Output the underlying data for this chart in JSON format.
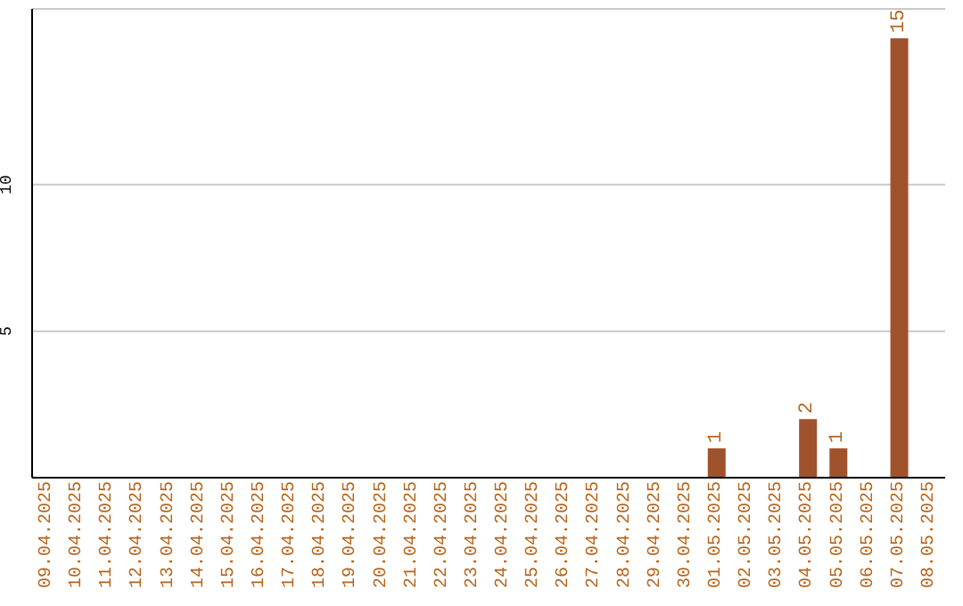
{
  "chart_data": {
    "type": "bar",
    "categories": [
      "09.04.2025",
      "10.04.2025",
      "11.04.2025",
      "12.04.2025",
      "13.04.2025",
      "14.04.2025",
      "15.04.2025",
      "16.04.2025",
      "17.04.2025",
      "18.04.2025",
      "19.04.2025",
      "20.04.2025",
      "21.04.2025",
      "22.04.2025",
      "23.04.2025",
      "24.04.2025",
      "25.04.2025",
      "26.04.2025",
      "27.04.2025",
      "28.04.2025",
      "29.04.2025",
      "30.04.2025",
      "01.05.2025",
      "02.05.2025",
      "03.05.2025",
      "04.05.2025",
      "05.05.2025",
      "06.05.2025",
      "07.05.2025",
      "08.05.2025"
    ],
    "values": [
      0,
      0,
      0,
      0,
      0,
      0,
      0,
      0,
      0,
      0,
      0,
      0,
      0,
      0,
      0,
      0,
      0,
      0,
      0,
      0,
      0,
      0,
      1,
      0,
      0,
      2,
      1,
      0,
      15,
      0
    ],
    "value_labels": [
      null,
      null,
      null,
      null,
      null,
      null,
      null,
      null,
      null,
      null,
      null,
      null,
      null,
      null,
      null,
      null,
      null,
      null,
      null,
      null,
      null,
      null,
      "1",
      null,
      null,
      "2",
      "1",
      null,
      "15",
      null
    ],
    "color": "#a0522d",
    "ylim": [
      0,
      16
    ],
    "yticks": [
      5,
      10
    ],
    "grid": "y"
  }
}
